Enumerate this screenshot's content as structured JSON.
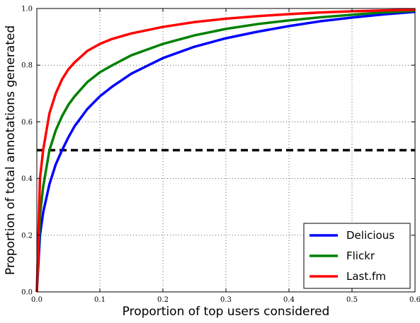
{
  "chart_data": {
    "type": "line",
    "xlabel": "Proportion of top users considered",
    "ylabel": "Proportion of total annotations generated",
    "xlim": [
      0.0,
      0.6
    ],
    "ylim": [
      0.0,
      1.0
    ],
    "x_ticks": [
      "0.0",
      "0.1",
      "0.2",
      "0.3",
      "0.4",
      "0.5",
      "0.6"
    ],
    "y_ticks": [
      "0.0",
      "0.2",
      "0.4",
      "0.6",
      "0.8",
      "1.0"
    ],
    "grid": true,
    "legend_position": "bottom-right",
    "reference_line": {
      "y": 0.5,
      "style": "dashed",
      "color": "#000000"
    },
    "series": [
      {
        "name": "Delicious",
        "color": "#0000ff",
        "x": [
          0,
          0.005,
          0.01,
          0.02,
          0.03,
          0.04,
          0.05,
          0.06,
          0.08,
          0.1,
          0.12,
          0.15,
          0.2,
          0.25,
          0.3,
          0.35,
          0.4,
          0.45,
          0.5,
          0.55,
          0.6
        ],
        "y": [
          0,
          0.2,
          0.28,
          0.38,
          0.45,
          0.5,
          0.545,
          0.585,
          0.645,
          0.69,
          0.725,
          0.77,
          0.825,
          0.865,
          0.895,
          0.918,
          0.938,
          0.955,
          0.968,
          0.979,
          0.988
        ]
      },
      {
        "name": "Flickr",
        "color": "#008000",
        "x": [
          0,
          0.005,
          0.01,
          0.02,
          0.03,
          0.04,
          0.05,
          0.06,
          0.08,
          0.1,
          0.12,
          0.15,
          0.2,
          0.25,
          0.3,
          0.35,
          0.4,
          0.45,
          0.5,
          0.55,
          0.6
        ],
        "y": [
          0,
          0.27,
          0.37,
          0.5,
          0.57,
          0.62,
          0.66,
          0.69,
          0.74,
          0.775,
          0.8,
          0.835,
          0.875,
          0.905,
          0.928,
          0.945,
          0.958,
          0.969,
          0.978,
          0.986,
          0.992
        ]
      },
      {
        "name": "Last.fm",
        "color": "#ff0000",
        "x": [
          0,
          0.005,
          0.01,
          0.02,
          0.03,
          0.04,
          0.05,
          0.06,
          0.08,
          0.1,
          0.12,
          0.15,
          0.2,
          0.25,
          0.3,
          0.35,
          0.4,
          0.45,
          0.5,
          0.55,
          0.6
        ],
        "y": [
          0,
          0.4,
          0.5,
          0.63,
          0.7,
          0.75,
          0.785,
          0.81,
          0.85,
          0.875,
          0.893,
          0.912,
          0.935,
          0.952,
          0.964,
          0.973,
          0.98,
          0.986,
          0.99,
          0.993,
          0.996
        ]
      }
    ]
  }
}
